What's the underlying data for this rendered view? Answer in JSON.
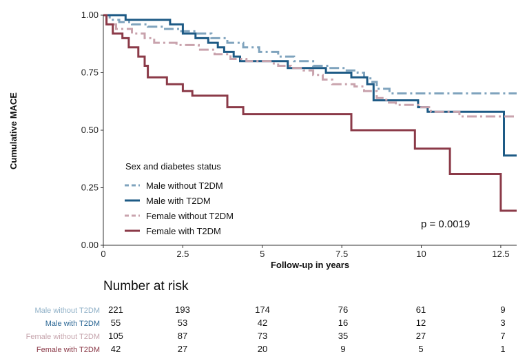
{
  "chart_data": {
    "type": "line",
    "title": "",
    "xlabel": "Follow-up in years",
    "ylabel": "Cumulative MACE",
    "xlim": [
      0,
      13
    ],
    "ylim": [
      0,
      1
    ],
    "xticks": [
      0,
      2.5,
      5,
      7.5,
      10,
      12.5
    ],
    "xtick_labels": [
      "0",
      "2.5",
      "5",
      "7.5",
      "10",
      "12.5"
    ],
    "yticks": [
      0,
      0.25,
      0.5,
      0.75,
      1.0
    ],
    "ytick_labels": [
      "0.00",
      "0.25",
      "0.50",
      "0.75",
      "1.00"
    ],
    "legend_title": "Sex and diabetes status",
    "legend_position": "bottom-left",
    "annotation": "p = 0.0019",
    "series": [
      {
        "name": "Male without T2DM",
        "color": "#7fa3bd",
        "dash": "dashdot",
        "steps": [
          [
            0,
            1.0
          ],
          [
            0.2,
            0.98
          ],
          [
            0.5,
            0.97
          ],
          [
            0.9,
            0.96
          ],
          [
            1.4,
            0.95
          ],
          [
            1.9,
            0.94
          ],
          [
            2.4,
            0.93
          ],
          [
            2.9,
            0.92
          ],
          [
            3.4,
            0.9
          ],
          [
            3.9,
            0.88
          ],
          [
            4.4,
            0.86
          ],
          [
            4.9,
            0.84
          ],
          [
            5.5,
            0.82
          ],
          [
            6.0,
            0.8
          ],
          [
            6.6,
            0.78
          ],
          [
            7.1,
            0.77
          ],
          [
            7.6,
            0.76
          ],
          [
            8.0,
            0.75
          ],
          [
            8.2,
            0.73
          ],
          [
            8.4,
            0.71
          ],
          [
            8.6,
            0.68
          ],
          [
            9.0,
            0.66
          ],
          [
            13.0,
            0.66
          ]
        ]
      },
      {
        "name": "Male with T2DM",
        "color": "#1d5a85",
        "dash": "solid",
        "steps": [
          [
            0,
            1.0
          ],
          [
            0.7,
            0.98
          ],
          [
            2.1,
            0.96
          ],
          [
            2.5,
            0.92
          ],
          [
            2.9,
            0.9
          ],
          [
            3.3,
            0.88
          ],
          [
            3.6,
            0.86
          ],
          [
            3.8,
            0.84
          ],
          [
            4.1,
            0.82
          ],
          [
            4.3,
            0.8
          ],
          [
            5.8,
            0.77
          ],
          [
            7.0,
            0.75
          ],
          [
            7.8,
            0.73
          ],
          [
            8.3,
            0.7
          ],
          [
            8.5,
            0.63
          ],
          [
            9.9,
            0.6
          ],
          [
            10.2,
            0.58
          ],
          [
            12.5,
            0.58
          ],
          [
            12.6,
            0.39
          ],
          [
            13.0,
            0.39
          ]
        ]
      },
      {
        "name": "Female without T2DM",
        "color": "#c9a3ad",
        "dash": "dashdot",
        "steps": [
          [
            0,
            1.0
          ],
          [
            0.1,
            0.96
          ],
          [
            0.4,
            0.94
          ],
          [
            0.9,
            0.92
          ],
          [
            1.3,
            0.9
          ],
          [
            1.6,
            0.88
          ],
          [
            2.3,
            0.87
          ],
          [
            3.0,
            0.85
          ],
          [
            3.5,
            0.83
          ],
          [
            4.0,
            0.81
          ],
          [
            4.5,
            0.8
          ],
          [
            5.3,
            0.79
          ],
          [
            5.5,
            0.78
          ],
          [
            5.9,
            0.77
          ],
          [
            6.3,
            0.76
          ],
          [
            6.6,
            0.74
          ],
          [
            6.9,
            0.72
          ],
          [
            7.2,
            0.7
          ],
          [
            7.9,
            0.69
          ],
          [
            8.2,
            0.67
          ],
          [
            8.6,
            0.64
          ],
          [
            8.9,
            0.62
          ],
          [
            9.2,
            0.61
          ],
          [
            10.0,
            0.6
          ],
          [
            10.3,
            0.58
          ],
          [
            11.2,
            0.56
          ],
          [
            13.0,
            0.56
          ]
        ]
      },
      {
        "name": "Female with T2DM",
        "color": "#8b3a48",
        "dash": "solid",
        "steps": [
          [
            0,
            1.0
          ],
          [
            0.1,
            0.96
          ],
          [
            0.3,
            0.92
          ],
          [
            0.6,
            0.9
          ],
          [
            0.8,
            0.86
          ],
          [
            1.1,
            0.82
          ],
          [
            1.3,
            0.78
          ],
          [
            1.4,
            0.73
          ],
          [
            2.0,
            0.7
          ],
          [
            2.5,
            0.67
          ],
          [
            2.8,
            0.65
          ],
          [
            3.9,
            0.6
          ],
          [
            4.4,
            0.57
          ],
          [
            7.8,
            0.5
          ],
          [
            9.8,
            0.42
          ],
          [
            10.9,
            0.31
          ],
          [
            12.5,
            0.15
          ],
          [
            13.0,
            0.15
          ]
        ]
      }
    ],
    "number_at_risk": {
      "title": "Number at risk",
      "times": [
        0,
        2.5,
        5,
        7.5,
        10,
        12.5
      ],
      "rows": [
        {
          "name": "Male without T2DM",
          "color": "#8fb0c7",
          "values": [
            221,
            193,
            174,
            76,
            61,
            9
          ]
        },
        {
          "name": "Male with T2DM",
          "color": "#2a6694",
          "values": [
            55,
            53,
            42,
            16,
            12,
            3
          ]
        },
        {
          "name": "Female without T2DM",
          "color": "#c6a5ad",
          "values": [
            105,
            87,
            73,
            35,
            27,
            7
          ]
        },
        {
          "name": "Female with T2DM",
          "color": "#8b3a48",
          "values": [
            42,
            27,
            20,
            9,
            5,
            1
          ]
        }
      ]
    }
  }
}
